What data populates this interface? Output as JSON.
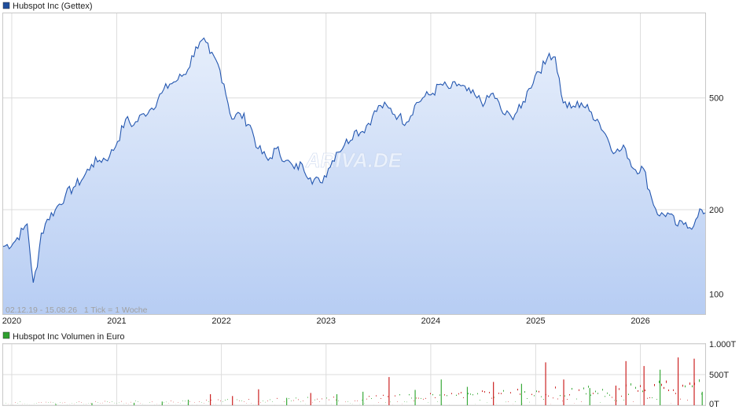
{
  "price_chart": {
    "legend_label": "Hubspot Inc (Gettex)",
    "legend_color": "#1f4e9c",
    "range_note": "02.12.19 - 15.08.26   1 Tick = 1 Woche",
    "watermark": "ARIVA.DE",
    "line_color": "#2457b0",
    "fill_top": "#e6eefb",
    "fill_bottom": "#b7cdf3"
  },
  "volume_chart": {
    "legend_label": "Hubspot Inc Volumen in Euro",
    "legend_color": "#2ea02e",
    "up_color": "#3aaa3a",
    "down_color": "#cc2222"
  },
  "chart_data": [
    {
      "type": "line",
      "title": "Hubspot Inc (Gettex)",
      "y_scale": "log",
      "ylim": [
        85,
        1000
      ],
      "yticks": [
        100,
        200,
        500
      ],
      "ytick_labels": [
        "100",
        "200",
        "500"
      ],
      "x_labels": [
        "2020",
        "2021",
        "2022",
        "2023",
        "2024",
        "2025",
        "2026"
      ],
      "xlim": [
        "2019-12-02",
        "2026-08-15"
      ],
      "grid": true,
      "series": [
        {
          "name": "Hubspot Inc (Gettex)",
          "x": [
            "2019-12-02",
            "2020-01-06",
            "2020-02-10",
            "2020-02-24",
            "2020-03-16",
            "2020-03-30",
            "2020-04-13",
            "2020-05-04",
            "2020-06-01",
            "2020-07-06",
            "2020-08-03",
            "2020-09-07",
            "2020-10-05",
            "2020-11-02",
            "2020-12-07",
            "2021-01-04",
            "2021-02-01",
            "2021-03-01",
            "2021-04-05",
            "2021-05-03",
            "2021-06-07",
            "2021-07-05",
            "2021-08-02",
            "2021-09-06",
            "2021-10-04",
            "2021-11-08",
            "2021-11-22",
            "2021-12-20",
            "2022-01-10",
            "2022-02-07",
            "2022-03-07",
            "2022-04-11",
            "2022-05-09",
            "2022-06-13",
            "2022-07-11",
            "2022-08-15",
            "2022-09-12",
            "2022-10-10",
            "2022-11-07",
            "2022-12-12",
            "2023-01-09",
            "2023-02-06",
            "2023-03-06",
            "2023-04-10",
            "2023-05-08",
            "2023-06-12",
            "2023-07-10",
            "2023-08-07",
            "2023-09-11",
            "2023-10-09",
            "2023-11-06",
            "2023-12-04",
            "2024-01-08",
            "2024-02-05",
            "2024-03-04",
            "2024-04-08",
            "2024-05-06",
            "2024-06-10",
            "2024-07-08",
            "2024-08-05",
            "2024-09-09",
            "2024-10-07",
            "2024-11-11",
            "2024-12-09",
            "2025-01-06",
            "2025-02-03",
            "2025-02-17",
            "2025-03-10",
            "2025-04-07",
            "2025-05-05",
            "2025-06-09",
            "2025-07-07",
            "2025-08-04",
            "2025-09-08",
            "2025-10-06",
            "2025-11-10",
            "2025-12-08",
            "2026-01-12",
            "2026-02-09",
            "2026-03-09",
            "2026-04-06",
            "2026-05-11",
            "2026-06-08",
            "2026-07-06",
            "2026-08-03",
            "2026-08-15"
          ],
          "values": [
            148,
            152,
            170,
            178,
            110,
            125,
            165,
            185,
            200,
            225,
            240,
            260,
            290,
            300,
            310,
            350,
            420,
            400,
            440,
            460,
            520,
            560,
            580,
            630,
            760,
            790,
            720,
            660,
            560,
            420,
            440,
            400,
            330,
            300,
            330,
            300,
            280,
            290,
            260,
            250,
            280,
            320,
            340,
            380,
            380,
            430,
            470,
            460,
            430,
            410,
            470,
            500,
            520,
            560,
            540,
            560,
            530,
            500,
            480,
            520,
            440,
            430,
            460,
            540,
            620,
            660,
            720,
            700,
            480,
            460,
            480,
            450,
            420,
            360,
            320,
            330,
            280,
            280,
            220,
            190,
            195,
            175,
            180,
            175,
            200,
            195
          ]
        }
      ]
    },
    {
      "type": "bar",
      "title": "Hubspot Inc Volumen in Euro",
      "ylim": [
        0,
        1000
      ],
      "yticks": [
        0,
        500,
        1000
      ],
      "ytick_labels": [
        "0T",
        "500T",
        "1.000T"
      ],
      "notes": "weekly volume bars, green=up week, red=down week (sampled)",
      "series": [
        {
          "name": "Hubspot Inc Volumen in Euro",
          "x": [
            "2020-06-01",
            "2020-10-05",
            "2021-03-01",
            "2021-06-07",
            "2021-09-06",
            "2021-11-22",
            "2022-02-07",
            "2022-05-09",
            "2022-08-15",
            "2022-11-07",
            "2023-02-06",
            "2023-05-08",
            "2023-08-07",
            "2023-11-06",
            "2024-02-05",
            "2024-05-06",
            "2024-08-05",
            "2024-11-11",
            "2025-02-03",
            "2025-04-07",
            "2025-07-07",
            "2025-10-06",
            "2025-11-10",
            "2026-01-12",
            "2026-03-09",
            "2026-05-11",
            "2026-07-06",
            "2026-08-03"
          ],
          "values": [
            20,
            35,
            40,
            60,
            90,
            180,
            150,
            260,
            120,
            200,
            180,
            220,
            460,
            250,
            420,
            300,
            380,
            350,
            700,
            420,
            280,
            320,
            720,
            640,
            580,
            780,
            760,
            220
          ],
          "direction": [
            "up",
            "up",
            "up",
            "up",
            "up",
            "down",
            "down",
            "down",
            "up",
            "down",
            "up",
            "up",
            "down",
            "up",
            "up",
            "up",
            "down",
            "up",
            "down",
            "down",
            "up",
            "down",
            "down",
            "down",
            "up",
            "down",
            "down",
            "up"
          ]
        }
      ]
    }
  ]
}
